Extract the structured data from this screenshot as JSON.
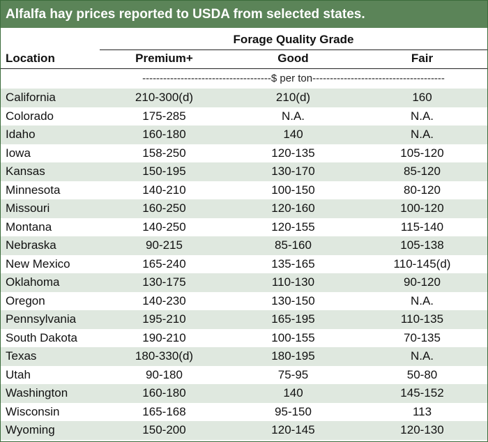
{
  "title": "Alfalfa hay prices reported to USDA from selected states.",
  "header": {
    "group_label": "Forage Quality Grade",
    "location_label": "Location",
    "columns": [
      "Premium+",
      "Good",
      "Fair"
    ],
    "units_line": "-------------------------------------$ per ton--------------------------------------"
  },
  "rows": [
    {
      "location": "California",
      "premium": "210-300(d)",
      "good": "210(d)",
      "fair": "160"
    },
    {
      "location": "Colorado",
      "premium": "175-285",
      "good": "N.A.",
      "fair": "N.A."
    },
    {
      "location": "Idaho",
      "premium": "160-180",
      "good": "140",
      "fair": "N.A."
    },
    {
      "location": "Iowa",
      "premium": "158-250",
      "good": "120-135",
      "fair": "105-120"
    },
    {
      "location": "Kansas",
      "premium": "150-195",
      "good": "130-170",
      "fair": "85-120"
    },
    {
      "location": "Minnesota",
      "premium": "140-210",
      "good": "100-150",
      "fair": "80-120"
    },
    {
      "location": "Missouri",
      "premium": "160-250",
      "good": "120-160",
      "fair": "100-120"
    },
    {
      "location": "Montana",
      "premium": "140-250",
      "good": "120-155",
      "fair": "115-140"
    },
    {
      "location": "Nebraska",
      "premium": "90-215",
      "good": "85-160",
      "fair": "105-138"
    },
    {
      "location": "New Mexico",
      "premium": "165-240",
      "good": "135-165",
      "fair": "110-145(d)"
    },
    {
      "location": "Oklahoma",
      "premium": "130-175",
      "good": "110-130",
      "fair": "90-120"
    },
    {
      "location": "Oregon",
      "premium": "140-230",
      "good": "130-150",
      "fair": "N.A."
    },
    {
      "location": "Pennsylvania",
      "premium": "195-210",
      "good": "165-195",
      "fair": "110-135"
    },
    {
      "location": "South Dakota",
      "premium": "190-210",
      "good": "100-155",
      "fair": "70-135"
    },
    {
      "location": "Texas",
      "premium": "180-330(d)",
      "good": "180-195",
      "fair": "N.A."
    },
    {
      "location": "Utah",
      "premium": "90-180",
      "good": "75-95",
      "fair": "50-80"
    },
    {
      "location": "Washington",
      "premium": "160-180",
      "good": "140",
      "fair": "145-152"
    },
    {
      "location": "Wisconsin",
      "premium": "165-168",
      "good": "95-150",
      "fair": "113"
    },
    {
      "location": "Wyoming",
      "premium": "150-200",
      "good": "120-145",
      "fair": "120-130"
    }
  ],
  "colors": {
    "title_bar": "#5b8458",
    "shaded_row": "#dfe8df"
  }
}
